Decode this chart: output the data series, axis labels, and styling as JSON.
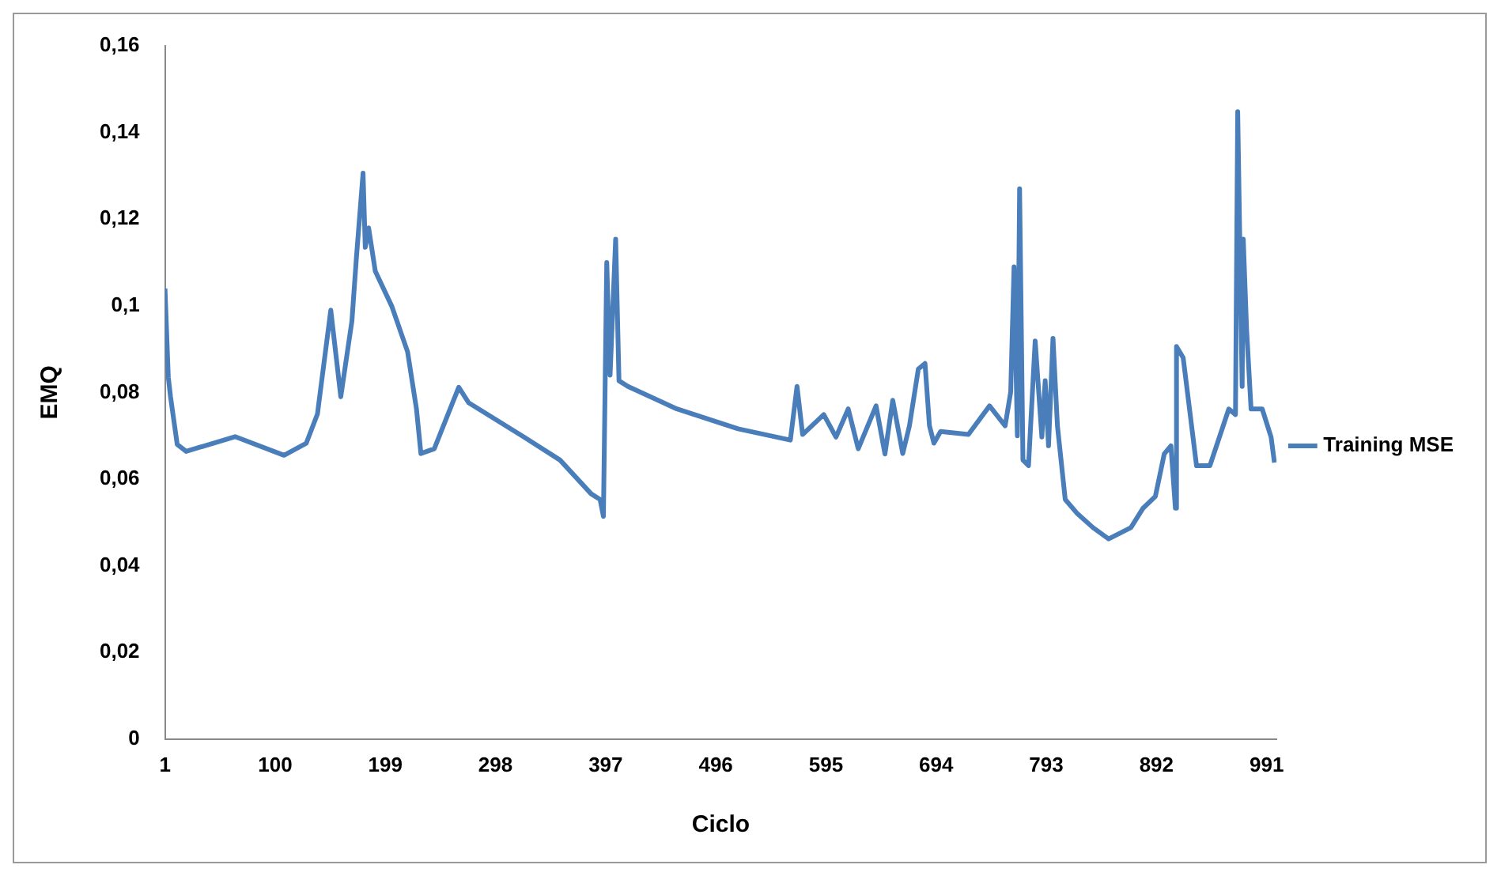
{
  "chart_data": {
    "type": "line",
    "xlabel": "Ciclo",
    "ylabel": "EMQ",
    "xlim": [
      1,
      1000
    ],
    "xticks": [
      1,
      100,
      199,
      298,
      397,
      496,
      595,
      694,
      793,
      892,
      991
    ],
    "ylim": [
      0,
      0.16
    ],
    "yticks": [
      0,
      {
        "value": 0.02,
        "label": "0,02"
      },
      {
        "value": 0.04,
        "label": "0,04"
      },
      {
        "value": 0.06,
        "label": "0,06"
      },
      {
        "value": 0.08,
        "label": "0,08"
      },
      {
        "value": 0.1,
        "label": "0,1"
      },
      {
        "value": 0.12,
        "label": "0,12"
      },
      {
        "value": 0.14,
        "label": "0,14"
      },
      {
        "value": 0.16,
        "label": "0,16"
      }
    ],
    "grid": false,
    "legend": "right",
    "marker": "none",
    "line_style": "solid",
    "series": [
      {
        "name": "Training MSE",
        "color": "#4a7ebb",
        "x": [
          1,
          4,
          6,
          12,
          20,
          64,
          108,
          128,
          138,
          150,
          159,
          169,
          173,
          179,
          181,
          184,
          190,
          205,
          219,
          227,
          231,
          243,
          265,
          274,
          323,
          356,
          384,
          392,
          395,
          398,
          401,
          406,
          409,
          417,
          461,
          516,
          563,
          569,
          574,
          593,
          604,
          615,
          624,
          640,
          648,
          655,
          664,
          670,
          678,
          684,
          688,
          692,
          698,
          723,
          742,
          756,
          761,
          764,
          767,
          769,
          772,
          777,
          783,
          789,
          792,
          795,
          799,
          803,
          810,
          821,
          835,
          849,
          869,
          880,
          891,
          899,
          905,
          909,
          910,
          916,
          928,
          940,
          957,
          963,
          965,
          969,
          970,
          973,
          977,
          987,
          995,
          998
        ],
        "values": [
          0.104,
          0.0835,
          0.079,
          0.068,
          0.0664,
          0.0698,
          0.0655,
          0.0683,
          0.075,
          0.099,
          0.079,
          0.0965,
          0.111,
          0.1306,
          0.1135,
          0.118,
          0.108,
          0.0998,
          0.0894,
          0.0762,
          0.0659,
          0.067,
          0.0812,
          0.0776,
          0.0698,
          0.0644,
          0.0566,
          0.0553,
          0.0514,
          0.11,
          0.084,
          0.1154,
          0.0827,
          0.0814,
          0.0762,
          0.0716,
          0.069,
          0.0814,
          0.0703,
          0.0749,
          0.0697,
          0.0762,
          0.067,
          0.0769,
          0.0658,
          0.0782,
          0.0659,
          0.0723,
          0.0854,
          0.0867,
          0.0723,
          0.0683,
          0.071,
          0.0703,
          0.0769,
          0.0723,
          0.0801,
          0.109,
          0.07,
          0.127,
          0.0644,
          0.0631,
          0.0919,
          0.0697,
          0.0827,
          0.0677,
          0.0925,
          0.0723,
          0.0553,
          0.052,
          0.0488,
          0.0462,
          0.0488,
          0.0533,
          0.056,
          0.0658,
          0.0677,
          0.0533,
          0.0906,
          0.088,
          0.0631,
          0.0631,
          0.0762,
          0.0749,
          0.1448,
          0.0814,
          0.1154,
          0.0945,
          0.0762,
          0.0762,
          0.0697,
          0.0638
        ]
      }
    ]
  }
}
